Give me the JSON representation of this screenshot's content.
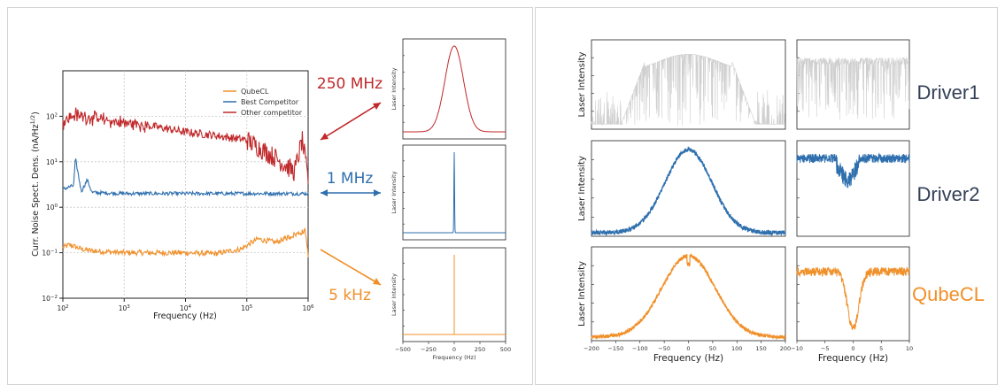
{
  "colors": {
    "qubecl": "#f0902a",
    "best": "#2e6fae",
    "other": "#c0292b",
    "driver1": "#cfcfcf",
    "driver_label": "#333f55",
    "grid": "#c8c8c8"
  },
  "chart_data": [
    {
      "type": "line",
      "id": "noise-spectrum",
      "xscale": "log",
      "yscale": "log",
      "xlim": [
        100,
        1000000
      ],
      "ylim": [
        0.01,
        1000
      ],
      "xlabel": "Frequency (Hz)",
      "ylabel": "Curr. Noise Spect. Dens. (nA/Hz",
      "ylabel_sup": "1/2",
      "ylabel_end": ")",
      "xticks": [
        {
          "base": "10",
          "exp": "2"
        },
        {
          "base": "10",
          "exp": "3"
        },
        {
          "base": "10",
          "exp": "4"
        },
        {
          "base": "10",
          "exp": "5"
        },
        {
          "base": "10",
          "exp": "6"
        }
      ],
      "yticks": [
        {
          "base": "10",
          "exp": "−2"
        },
        {
          "base": "10",
          "exp": "−1"
        },
        {
          "base": "10",
          "exp": "0"
        },
        {
          "base": "10",
          "exp": "1"
        },
        {
          "base": "10",
          "exp": "2"
        }
      ],
      "grid": true,
      "legend_position": "top-right",
      "series": [
        {
          "name": "QubeCL",
          "x": [
            100,
            130,
            200,
            300,
            1000,
            3000,
            10000,
            30000,
            80000,
            150000,
            300000,
            600000,
            900000,
            1000000
          ],
          "y": [
            0.13,
            0.15,
            0.12,
            0.11,
            0.1,
            0.1,
            0.1,
            0.095,
            0.12,
            0.2,
            0.17,
            0.25,
            0.3,
            0.09
          ]
        },
        {
          "name": "Best Competitor",
          "x": [
            100,
            150,
            160,
            200,
            250,
            300,
            1000,
            10000,
            100000,
            1000000
          ],
          "y": [
            2.5,
            3,
            12,
            2.2,
            4,
            2.1,
            2,
            2,
            2,
            2
          ]
        },
        {
          "name": "Other competitor",
          "x": [
            100,
            150,
            300,
            1000,
            3000,
            10000,
            30000,
            100000,
            300000,
            600000,
            800000,
            1000000
          ],
          "y": [
            70,
            110,
            90,
            70,
            60,
            45,
            38,
            30,
            12,
            6,
            30,
            4
          ]
        }
      ]
    },
    {
      "type": "line",
      "id": "small-laser-plots",
      "xlim": [
        -500,
        500
      ],
      "xticks": [
        "−500",
        "−250",
        "0",
        "250",
        "500"
      ],
      "xlabel": "Frequency (Hz)",
      "ylabel": "Laser Intensity",
      "series": [
        {
          "label": "250 MHz",
          "shape": "gaussian",
          "width_hz": 90
        },
        {
          "label": "1 MHz",
          "shape": "gaussian",
          "width_hz": 3
        },
        {
          "label": "5 kHz",
          "shape": "delta",
          "width_hz": 0.5
        }
      ]
    },
    {
      "type": "line",
      "id": "driver-spectra",
      "ylabel": "Laser Intensity",
      "xlabel": "Frequency (Hz)",
      "wide_xlim": [
        -200,
        200
      ],
      "wide_xticks": [
        "−200",
        "−150",
        "−100",
        "−50",
        "0",
        "50",
        "100",
        "150",
        "200"
      ],
      "narrow_xlim": [
        -10,
        10
      ],
      "narrow_xticks": [
        "−10",
        "−5",
        "0",
        "5",
        "10"
      ],
      "series": [
        {
          "name": "Driver1",
          "wide": "noisy-broad",
          "narrow": "noisy-flat"
        },
        {
          "name": "Driver2",
          "wide": "gaussian",
          "narrow": "shallow-dip"
        },
        {
          "name": "QubeCL",
          "wide": "gaussian",
          "narrow": "deep-dip"
        }
      ]
    }
  ]
}
